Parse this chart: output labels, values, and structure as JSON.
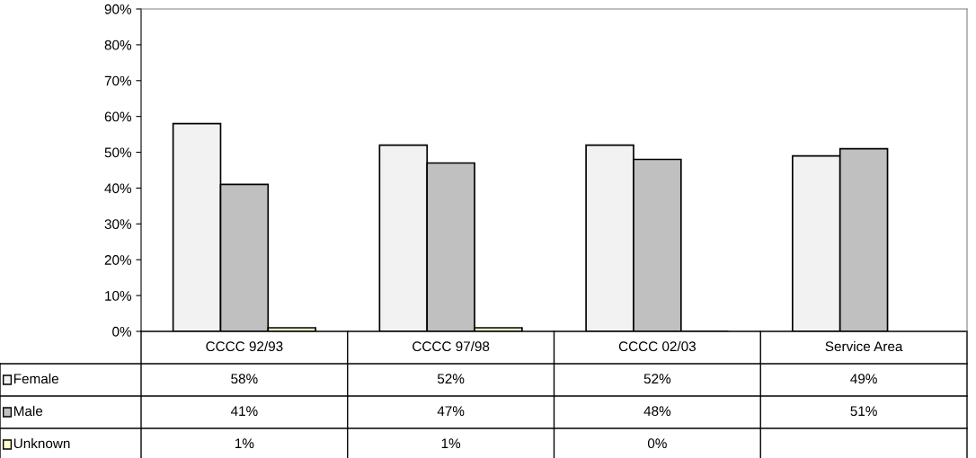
{
  "chart_data": {
    "type": "bar",
    "categories": [
      "CCCC 92/93",
      "CCCC 97/98",
      "CCCC 02/03",
      "Service Area"
    ],
    "series": [
      {
        "name": "Female",
        "color": "#f2f2f2",
        "values": [
          58,
          52,
          52,
          49
        ],
        "value_labels": [
          "58%",
          "52%",
          "52%",
          "49%"
        ]
      },
      {
        "name": "Male",
        "color": "#c0c0c0",
        "values": [
          41,
          47,
          48,
          51
        ],
        "value_labels": [
          "41%",
          "47%",
          "48%",
          "51%"
        ]
      },
      {
        "name": "Unknown",
        "color": "#ffffcc",
        "values": [
          1,
          1,
          0,
          null
        ],
        "value_labels": [
          "1%",
          "1%",
          "0%",
          null
        ]
      }
    ],
    "ylim": [
      0,
      90
    ],
    "yticks": [
      {
        "value": 0,
        "label": "0%"
      },
      {
        "value": 10,
        "label": "10%"
      },
      {
        "value": 20,
        "label": "20%"
      },
      {
        "value": 30,
        "label": "30%"
      },
      {
        "value": 40,
        "label": "40%"
      },
      {
        "value": 50,
        "label": "50%"
      },
      {
        "value": 60,
        "label": "60%"
      },
      {
        "value": 70,
        "label": "70%"
      },
      {
        "value": 80,
        "label": "80%"
      },
      {
        "value": 90,
        "label": "90%"
      }
    ],
    "grid": false,
    "legend": "bottom"
  }
}
